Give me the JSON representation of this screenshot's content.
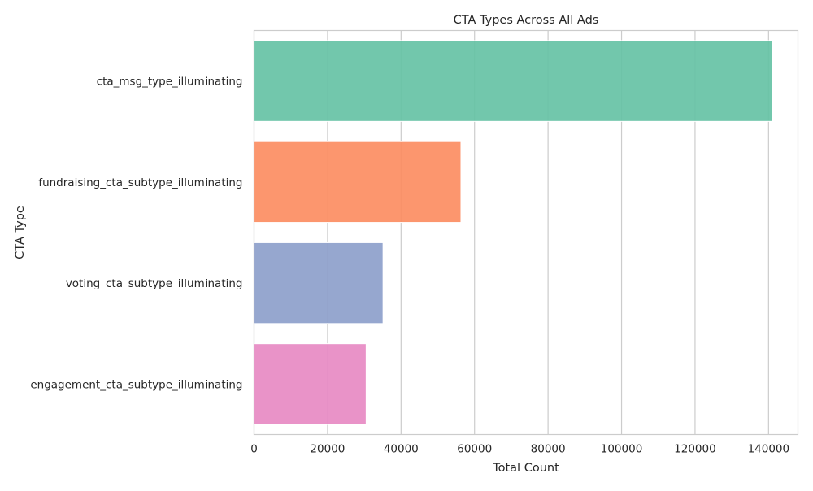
{
  "chart_data": {
    "type": "bar",
    "orientation": "horizontal",
    "title": "CTA Types Across All Ads",
    "xlabel": "Total Count",
    "ylabel": "CTA Type",
    "categories": [
      "cta_msg_type_illuminating",
      "fundraising_cta_subtype_illuminating",
      "voting_cta_subtype_illuminating",
      "engagement_cta_subtype_illuminating"
    ],
    "values": [
      141000,
      56300,
      35100,
      30500
    ],
    "colors": [
      "#66c2a5",
      "#fc8d62",
      "#8da0cb",
      "#e78ac3"
    ],
    "xlim": [
      0,
      148000
    ],
    "xticks": [
      0,
      20000,
      40000,
      60000,
      80000,
      100000,
      120000,
      140000
    ],
    "xtick_labels": [
      "0",
      "20000",
      "40000",
      "60000",
      "80000",
      "100000",
      "120000",
      "140000"
    ],
    "grid": true
  }
}
